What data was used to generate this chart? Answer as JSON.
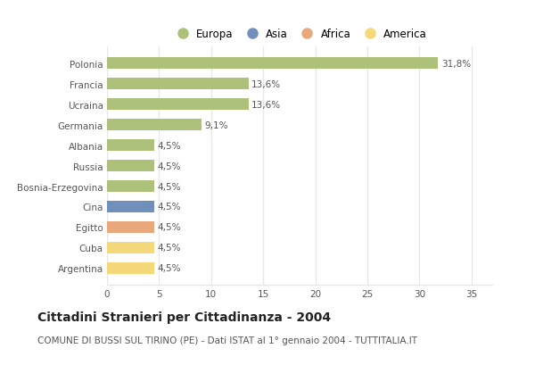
{
  "categories": [
    "Polonia",
    "Francia",
    "Ucraina",
    "Germania",
    "Albania",
    "Russia",
    "Bosnia-Erzegovina",
    "Cina",
    "Egitto",
    "Cuba",
    "Argentina"
  ],
  "values": [
    31.8,
    13.6,
    13.6,
    9.1,
    4.5,
    4.5,
    4.5,
    4.5,
    4.5,
    4.5,
    4.5
  ],
  "labels": [
    "31,8%",
    "13,6%",
    "13,6%",
    "9,1%",
    "4,5%",
    "4,5%",
    "4,5%",
    "4,5%",
    "4,5%",
    "4,5%",
    "4,5%"
  ],
  "colors": [
    "#adc17a",
    "#adc17a",
    "#adc17a",
    "#adc17a",
    "#adc17a",
    "#adc17a",
    "#adc17a",
    "#7090bb",
    "#e8a87c",
    "#f5d87a",
    "#f5d87a"
  ],
  "legend_labels": [
    "Europa",
    "Asia",
    "Africa",
    "America"
  ],
  "legend_colors": [
    "#adc17a",
    "#7090bb",
    "#e8a87c",
    "#f5d87a"
  ],
  "xlim": [
    0,
    37
  ],
  "xticks": [
    0,
    5,
    10,
    15,
    20,
    25,
    30,
    35
  ],
  "title": "Cittadini Stranieri per Cittadinanza - 2004",
  "subtitle": "COMUNE DI BUSSI SUL TIRINO (PE) - Dati ISTAT al 1° gennaio 2004 - TUTTITALIA.IT",
  "bg_color": "#ffffff",
  "grid_color": "#e8e8e8",
  "bar_height": 0.55,
  "title_fontsize": 10,
  "subtitle_fontsize": 7.5,
  "label_fontsize": 7.5,
  "tick_fontsize": 7.5,
  "legend_fontsize": 8.5
}
